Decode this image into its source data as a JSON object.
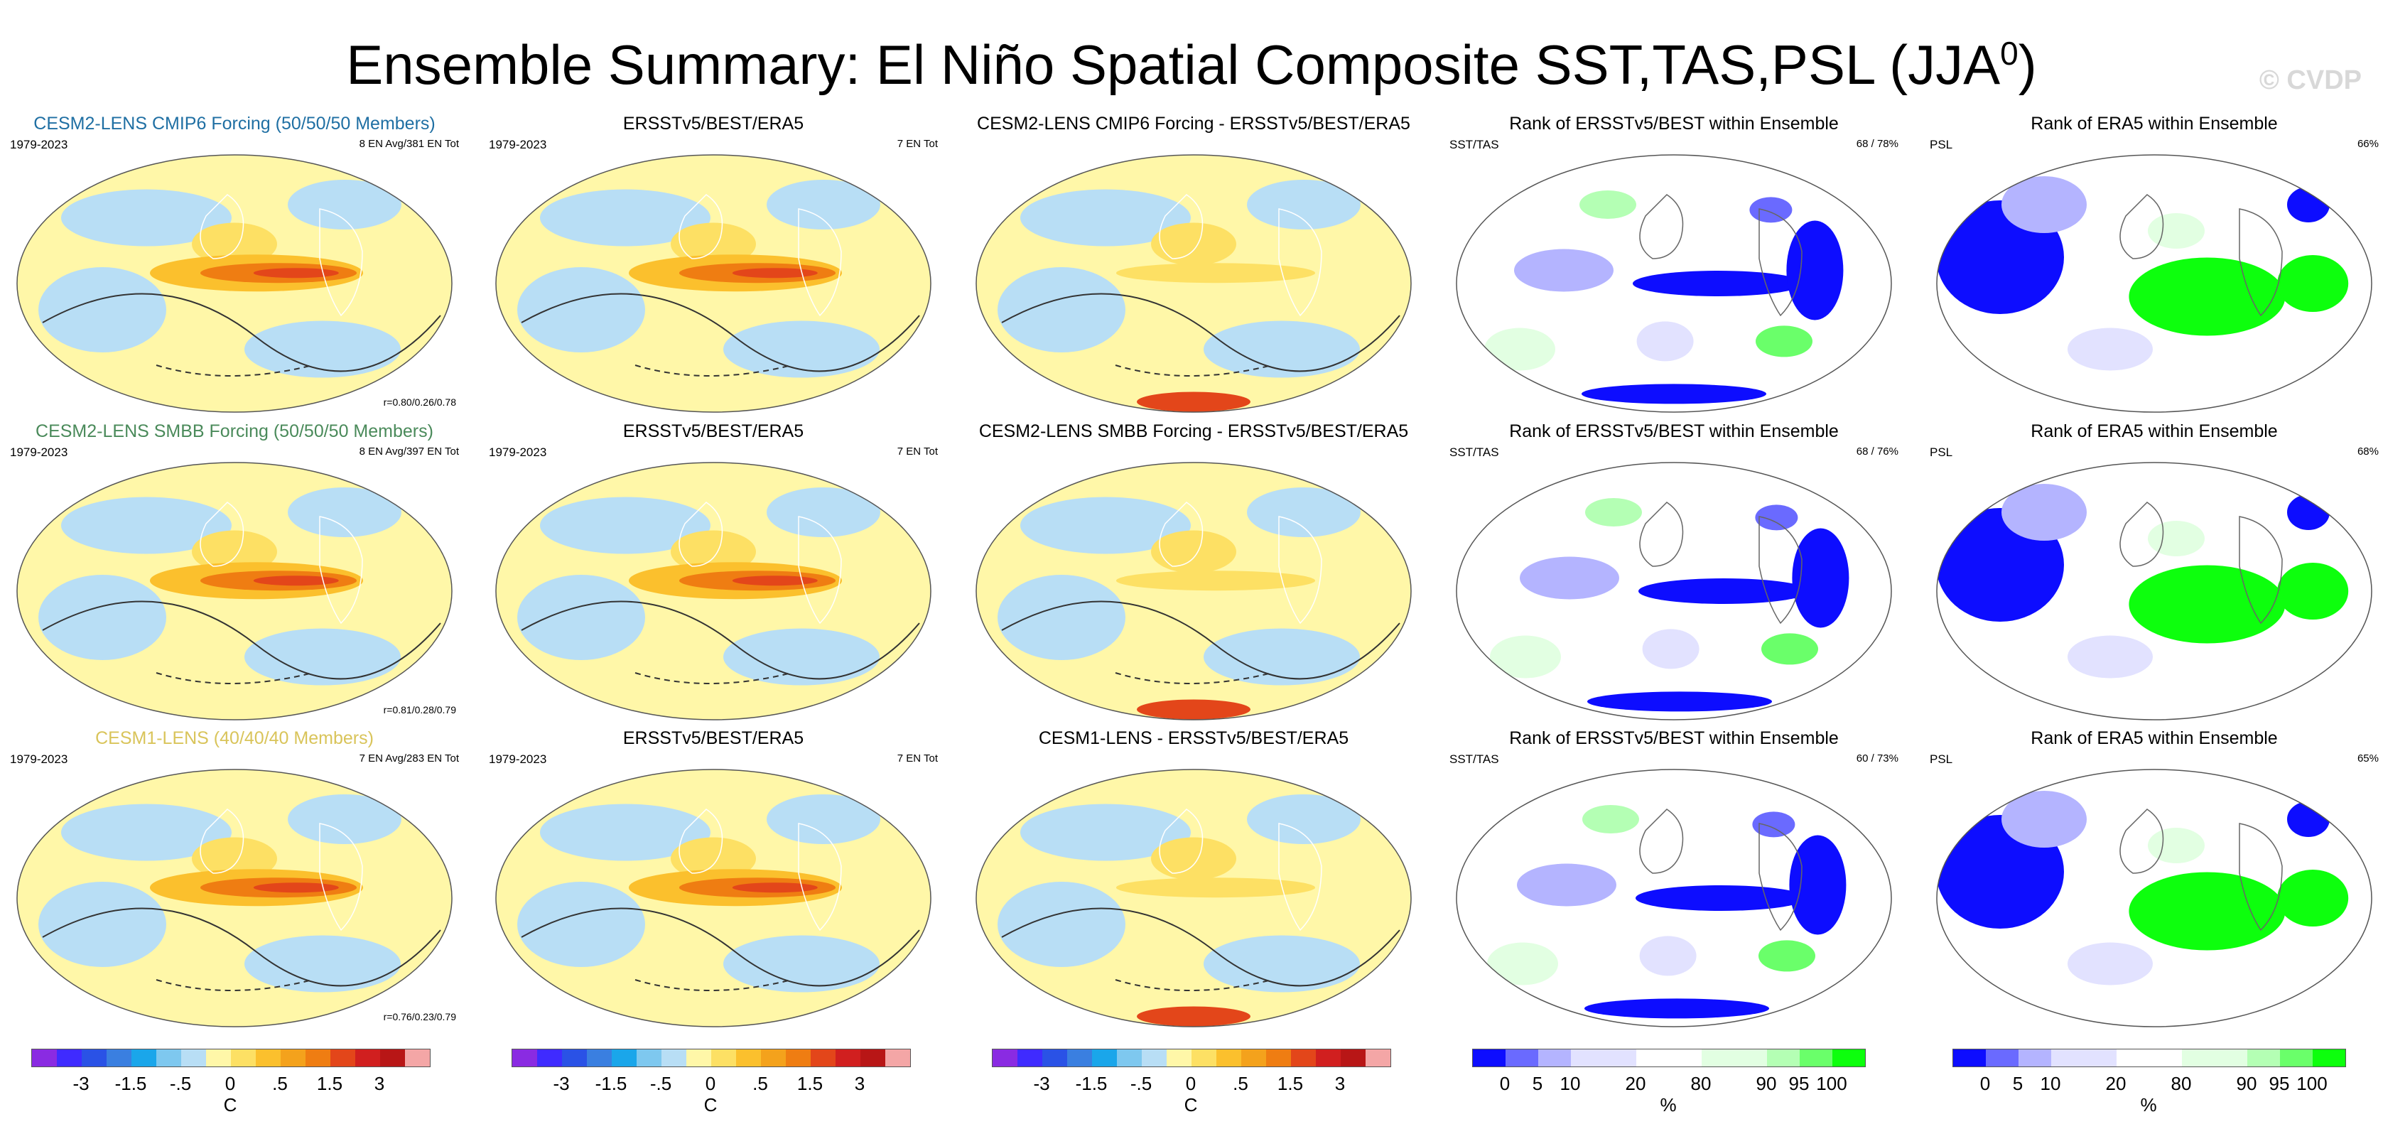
{
  "title": {
    "main": "Ensemble Summary: El Niño Spatial Composite SST,TAS,PSL (JJA",
    "sup": "0",
    "close": ")"
  },
  "watermark": "© CVDP",
  "colors": {
    "diverging": [
      "#8a2be2",
      "#3f2bff",
      "#2a52e6",
      "#3a7fe0",
      "#1aa6ea",
      "#7ec8ef",
      "#b8def5",
      "#fff7a8",
      "#fde064",
      "#fbc02d",
      "#f4a21c",
      "#ef7d12",
      "#e3461a",
      "#d11f1f",
      "#b81616",
      "#f4a6a6"
    ],
    "rank": [
      "#0d0dff",
      "#6a6aff",
      "#b4b4ff",
      "#e2e2ff",
      "#ffffff",
      "#e2ffe2",
      "#b4ffb4",
      "#6aff6a",
      "#0dff0d"
    ],
    "rowtitle1": "#1f6fa3",
    "rowtitle2": "#4a8a5a",
    "rowtitle3": "#d9c45a"
  },
  "rows": [
    {
      "model": {
        "title": "CESM2-LENS CMIP6 Forcing (50/50/50 Members)",
        "period": "1979-2023",
        "info": "8 EN Avg/381 EN Tot",
        "corr": "r=0.80/0.26/0.78"
      },
      "obs": {
        "title": "ERSSTv5/BEST/ERA5",
        "period": "1979-2023",
        "info": "7 EN Tot"
      },
      "diff": {
        "title": "CESM2-LENS CMIP6 Forcing - ERSSTv5/BEST/ERA5"
      },
      "rank1": {
        "title": "Rank of ERSSTv5/BEST within Ensemble",
        "var": "SST/TAS",
        "pct": "68 /  78%"
      },
      "rank2": {
        "title": "Rank of ERA5 within Ensemble",
        "var": "PSL",
        "pct": "66%"
      }
    },
    {
      "model": {
        "title": "CESM2-LENS SMBB Forcing (50/50/50 Members)",
        "period": "1979-2023",
        "info": "8 EN Avg/397 EN Tot",
        "corr": "r=0.81/0.28/0.79"
      },
      "obs": {
        "title": "ERSSTv5/BEST/ERA5",
        "period": "1979-2023",
        "info": "7 EN Tot"
      },
      "diff": {
        "title": "CESM2-LENS SMBB Forcing - ERSSTv5/BEST/ERA5"
      },
      "rank1": {
        "title": "Rank of ERSSTv5/BEST within Ensemble",
        "var": "SST/TAS",
        "pct": "68 /  76%"
      },
      "rank2": {
        "title": "Rank of ERA5 within Ensemble",
        "var": "PSL",
        "pct": "68%"
      }
    },
    {
      "model": {
        "title": "CESM1-LENS (40/40/40 Members)",
        "period": "1979-2023",
        "info": "7 EN Avg/283 EN Tot",
        "corr": "r=0.76/0.23/0.79"
      },
      "obs": {
        "title": "ERSSTv5/BEST/ERA5",
        "period": "1979-2023",
        "info": "7 EN Tot"
      },
      "diff": {
        "title": "CESM1-LENS - ERSSTv5/BEST/ERA5"
      },
      "rank1": {
        "title": "Rank of ERSSTv5/BEST within Ensemble",
        "var": "SST/TAS",
        "pct": "60 /  73%"
      },
      "rank2": {
        "title": "Rank of ERA5 within Ensemble",
        "var": "PSL",
        "pct": "65%"
      }
    }
  ],
  "colorbars": {
    "temp": {
      "ticks": [
        "-3",
        "-1.5",
        "-.5",
        "0",
        ".5",
        "1.5",
        "3"
      ],
      "unit": "C"
    },
    "rank": {
      "ticks": [
        "0",
        "5",
        "10",
        "20",
        "80",
        "90",
        "95",
        "100"
      ],
      "unit": "%"
    }
  }
}
